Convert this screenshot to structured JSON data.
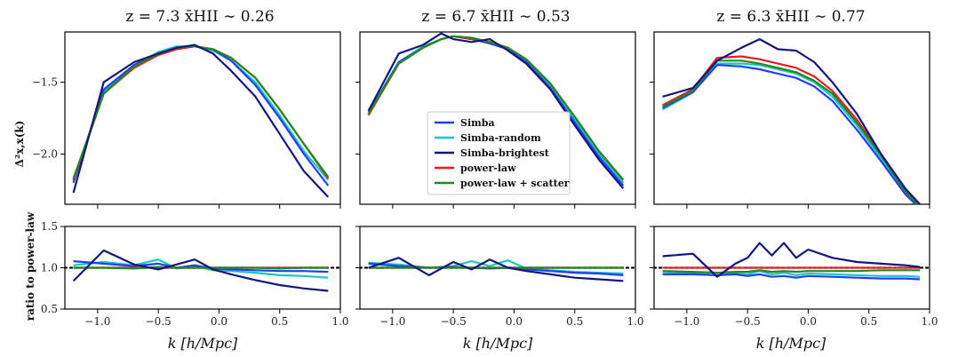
{
  "chart_data": {
    "type": "line",
    "legend": {
      "placement": "lower-center of middle top panel",
      "entries": [
        "Simba",
        "Simba-random",
        "Simba-brightest",
        "power-law",
        "power-law + scatter"
      ]
    },
    "colors": {
      "Simba": "#1f3fff",
      "Simba-random": "#1fc4c4",
      "Simba-brightest": "#12177f",
      "power-law": "#e81e1e",
      "power-law + scatter": "#1f8a1f",
      "reference": "#000000"
    },
    "x_label": "k [h/Mpc]",
    "x_ticks": [
      "−1.0",
      "−0.5",
      "0.0",
      "0.5",
      "1.0"
    ],
    "xlim": [
      -1.27,
      1.0
    ],
    "top_row": {
      "ylabel": "Δ²x,x(k)",
      "ylim": [
        -2.35,
        -1.15
      ],
      "yticks": [
        "−1.5",
        "−2.0"
      ],
      "ytick_values": [
        -1.5,
        -2.0
      ]
    },
    "bottom_row": {
      "ylabel": "ratio to power-law",
      "ylim": [
        0.5,
        1.5
      ],
      "yticks": [
        "0.5",
        "1.0",
        "1.5"
      ],
      "ytick_values": [
        0.5,
        1.0,
        1.5
      ],
      "reference_line": 1.0
    },
    "panels": [
      {
        "title": "z = 7.3  x̄HII ∼ 0.26",
        "top": {
          "x": [
            -1.2,
            -0.95,
            -0.7,
            -0.5,
            -0.35,
            -0.2,
            -0.05,
            0.1,
            0.3,
            0.5,
            0.7,
            0.9
          ],
          "series": [
            {
              "name": "Simba",
              "values": [
                -2.2,
                -1.55,
                -1.38,
                -1.3,
                -1.27,
                -1.25,
                -1.27,
                -1.35,
                -1.52,
                -1.75,
                -2.0,
                -2.22
              ]
            },
            {
              "name": "Simba-random",
              "values": [
                -2.19,
                -1.56,
                -1.38,
                -1.29,
                -1.25,
                -1.25,
                -1.28,
                -1.35,
                -1.5,
                -1.73,
                -1.98,
                -2.18
              ]
            },
            {
              "name": "Simba-brightest",
              "values": [
                -2.27,
                -1.5,
                -1.36,
                -1.3,
                -1.26,
                -1.24,
                -1.3,
                -1.42,
                -1.6,
                -1.86,
                -2.12,
                -2.3
              ]
            },
            {
              "name": "power-law",
              "values": [
                -2.18,
                -1.58,
                -1.4,
                -1.31,
                -1.27,
                -1.25,
                -1.27,
                -1.33,
                -1.47,
                -1.69,
                -1.93,
                -2.17
              ]
            },
            {
              "name": "power-law + scatter",
              "values": [
                -2.17,
                -1.58,
                -1.39,
                -1.3,
                -1.26,
                -1.25,
                -1.27,
                -1.33,
                -1.47,
                -1.69,
                -1.93,
                -2.16
              ]
            }
          ]
        },
        "bottom": {
          "x": [
            -1.2,
            -0.95,
            -0.7,
            -0.5,
            -0.35,
            -0.2,
            -0.05,
            0.1,
            0.3,
            0.5,
            0.7,
            0.9
          ],
          "series": [
            {
              "name": "Simba",
              "values": [
                1.08,
                1.05,
                1.02,
                1.05,
                1.0,
                1.03,
                0.99,
                0.98,
                0.97,
                0.96,
                0.96,
                0.95
              ]
            },
            {
              "name": "Simba-random",
              "values": [
                1.03,
                1.07,
                1.03,
                1.1,
                0.99,
                1.02,
                0.97,
                0.96,
                0.94,
                0.91,
                0.9,
                0.88
              ]
            },
            {
              "name": "Simba-brightest",
              "values": [
                0.84,
                1.21,
                1.04,
                0.98,
                1.04,
                1.1,
                0.98,
                0.92,
                0.85,
                0.79,
                0.75,
                0.72
              ]
            },
            {
              "name": "power-law",
              "values": [
                1.0,
                1.0,
                1.0,
                1.0,
                1.0,
                1.0,
                1.0,
                1.0,
                1.0,
                1.0,
                1.0,
                1.0
              ]
            },
            {
              "name": "power-law + scatter",
              "values": [
                1.0,
                1.0,
                0.99,
                1.01,
                1.0,
                1.0,
                1.0,
                1.0,
                1.0,
                0.99,
                1.0,
                1.0
              ]
            }
          ]
        }
      },
      {
        "title": "z = 6.7  x̄HII ∼ 0.53",
        "top": {
          "x": [
            -1.2,
            -0.95,
            -0.75,
            -0.6,
            -0.5,
            -0.35,
            -0.2,
            -0.05,
            0.1,
            0.3,
            0.5,
            0.7,
            0.9
          ],
          "series": [
            {
              "name": "Simba",
              "values": [
                -1.72,
                -1.36,
                -1.26,
                -1.2,
                -1.18,
                -1.2,
                -1.23,
                -1.27,
                -1.36,
                -1.54,
                -1.78,
                -2.02,
                -2.22
              ]
            },
            {
              "name": "Simba-random",
              "values": [
                -1.71,
                -1.36,
                -1.25,
                -1.2,
                -1.18,
                -1.2,
                -1.22,
                -1.26,
                -1.35,
                -1.52,
                -1.76,
                -2.0,
                -2.2
              ]
            },
            {
              "name": "Simba-brightest",
              "values": [
                -1.7,
                -1.3,
                -1.24,
                -1.16,
                -1.2,
                -1.22,
                -1.2,
                -1.28,
                -1.37,
                -1.55,
                -1.8,
                -2.04,
                -2.24
              ]
            },
            {
              "name": "power-law",
              "values": [
                -1.73,
                -1.37,
                -1.26,
                -1.2,
                -1.18,
                -1.2,
                -1.22,
                -1.26,
                -1.34,
                -1.51,
                -1.74,
                -1.98,
                -2.18
              ]
            },
            {
              "name": "power-law + scatter",
              "values": [
                -1.72,
                -1.37,
                -1.26,
                -1.2,
                -1.18,
                -1.19,
                -1.22,
                -1.26,
                -1.34,
                -1.51,
                -1.74,
                -1.98,
                -2.18
              ]
            }
          ]
        },
        "bottom": {
          "x": [
            -1.2,
            -0.95,
            -0.7,
            -0.5,
            -0.35,
            -0.2,
            -0.05,
            0.1,
            0.3,
            0.5,
            0.7,
            0.9
          ],
          "series": [
            {
              "name": "Simba",
              "values": [
                1.05,
                1.02,
                1.0,
                1.01,
                1.0,
                0.99,
                1.0,
                0.98,
                0.96,
                0.94,
                0.93,
                0.91
              ]
            },
            {
              "name": "Simba-random",
              "values": [
                1.06,
                1.04,
                1.0,
                1.02,
                1.08,
                1.02,
                1.09,
                0.99,
                0.97,
                0.95,
                0.94,
                0.93
              ]
            },
            {
              "name": "Simba-brightest",
              "values": [
                1.0,
                1.12,
                0.91,
                1.07,
                0.98,
                1.1,
                1.0,
                0.96,
                0.92,
                0.88,
                0.86,
                0.84
              ]
            },
            {
              "name": "power-law",
              "values": [
                1.0,
                1.0,
                1.0,
                1.0,
                1.0,
                1.0,
                1.0,
                1.0,
                1.0,
                1.0,
                1.0,
                1.0
              ]
            },
            {
              "name": "power-law + scatter",
              "values": [
                1.0,
                1.0,
                1.0,
                1.0,
                1.0,
                1.0,
                1.0,
                1.0,
                1.0,
                1.0,
                1.0,
                1.0
              ]
            }
          ]
        }
      },
      {
        "title": "z = 6.3  x̄HII ∼ 0.77",
        "top": {
          "x": [
            -1.2,
            -0.95,
            -0.75,
            -0.55,
            -0.4,
            -0.25,
            -0.1,
            0.05,
            0.2,
            0.4,
            0.6,
            0.8,
            0.92
          ],
          "series": [
            {
              "name": "Simba",
              "values": [
                -1.68,
                -1.57,
                -1.38,
                -1.39,
                -1.41,
                -1.44,
                -1.47,
                -1.53,
                -1.63,
                -1.83,
                -2.05,
                -2.28,
                -2.38
              ]
            },
            {
              "name": "Simba-random",
              "values": [
                -1.69,
                -1.57,
                -1.37,
                -1.37,
                -1.38,
                -1.41,
                -1.44,
                -1.5,
                -1.6,
                -1.8,
                -2.03,
                -2.27,
                -2.37
              ]
            },
            {
              "name": "Simba-brightest",
              "values": [
                -1.6,
                -1.54,
                -1.35,
                -1.26,
                -1.2,
                -1.27,
                -1.28,
                -1.36,
                -1.5,
                -1.72,
                -2.0,
                -2.24,
                -2.35
              ]
            },
            {
              "name": "power-law",
              "values": [
                -1.66,
                -1.55,
                -1.33,
                -1.32,
                -1.34,
                -1.37,
                -1.4,
                -1.46,
                -1.56,
                -1.76,
                -2.0,
                -2.25,
                -2.36
              ]
            },
            {
              "name": "power-law + scatter",
              "values": [
                -1.67,
                -1.56,
                -1.35,
                -1.35,
                -1.37,
                -1.4,
                -1.43,
                -1.49,
                -1.58,
                -1.78,
                -2.01,
                -2.26,
                -2.37
              ]
            }
          ]
        },
        "bottom": {
          "x": [
            -1.2,
            -0.95,
            -0.75,
            -0.6,
            -0.5,
            -0.4,
            -0.3,
            -0.2,
            -0.1,
            0.0,
            0.2,
            0.4,
            0.6,
            0.8,
            0.92
          ],
          "series": [
            {
              "name": "Simba",
              "values": [
                0.92,
                0.92,
                0.91,
                0.92,
                0.9,
                0.92,
                0.89,
                0.9,
                0.88,
                0.9,
                0.89,
                0.88,
                0.87,
                0.87,
                0.86
              ]
            },
            {
              "name": "Simba-random",
              "values": [
                0.95,
                0.93,
                0.91,
                0.93,
                0.92,
                0.96,
                0.92,
                0.94,
                0.91,
                0.93,
                0.92,
                0.91,
                0.9,
                0.9,
                0.89
              ]
            },
            {
              "name": "Simba-brightest",
              "values": [
                1.14,
                1.17,
                0.89,
                1.05,
                1.12,
                1.3,
                1.15,
                1.3,
                1.12,
                1.22,
                1.12,
                1.07,
                1.05,
                1.03,
                1.01
              ]
            },
            {
              "name": "power-law",
              "values": [
                1.0,
                1.0,
                1.0,
                1.0,
                1.0,
                1.0,
                1.0,
                1.0,
                1.0,
                1.0,
                1.0,
                1.0,
                1.0,
                1.0,
                1.0
              ]
            },
            {
              "name": "power-law + scatter",
              "values": [
                0.96,
                0.95,
                0.94,
                0.95,
                0.95,
                0.97,
                0.95,
                0.96,
                0.95,
                0.96,
                0.96,
                0.96,
                0.97,
                0.97,
                0.97
              ]
            }
          ]
        }
      }
    ]
  }
}
